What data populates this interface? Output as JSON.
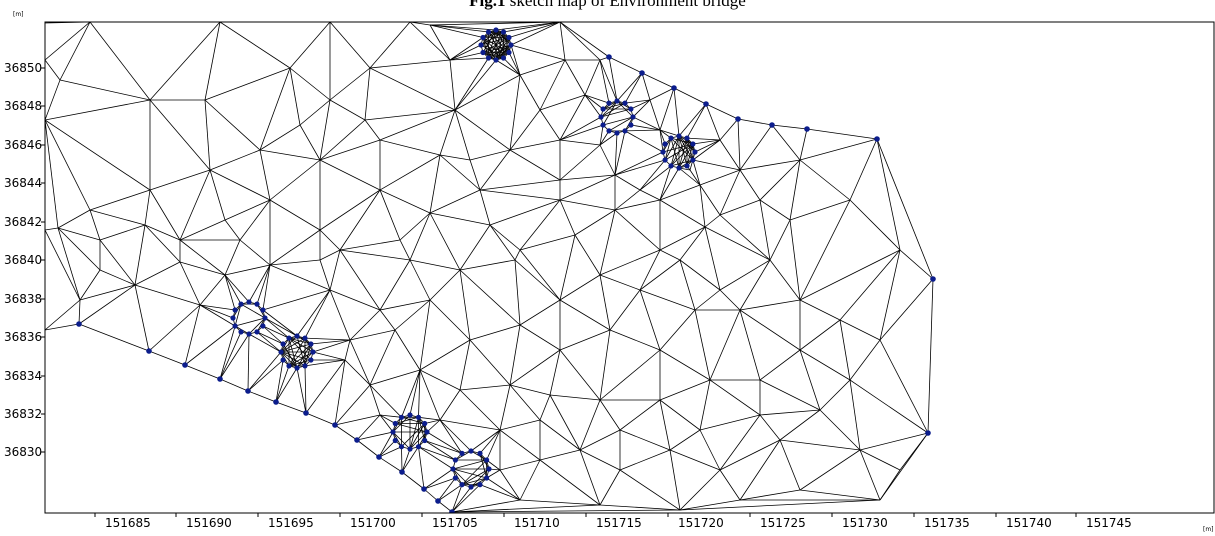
{
  "figure": {
    "title_bold": "Fig.1",
    "title_rest": " sketch map of Environment bridge"
  },
  "colors": {
    "mesh_line": "#000000",
    "node": "#0c1d8c",
    "frame": "#000000",
    "background": "#ffffff"
  },
  "axes": {
    "y_unit": "[m]",
    "x_unit": "[m]",
    "y_ticks": [
      "36850",
      "36848",
      "36846",
      "36844",
      "36842",
      "36840",
      "36838",
      "36836",
      "36834",
      "36832",
      "36830"
    ],
    "x_ticks": [
      "151685",
      "151690",
      "151695",
      "151700",
      "151705",
      "151710",
      "151715",
      "151720",
      "151725",
      "151730",
      "151735",
      "151740",
      "151745"
    ],
    "x_range": [
      151682,
      151745
    ],
    "y_range": [
      36828.5,
      36852.5
    ]
  },
  "mesh": {
    "pier_count": 7,
    "nodes_per_pier": 12
  }
}
